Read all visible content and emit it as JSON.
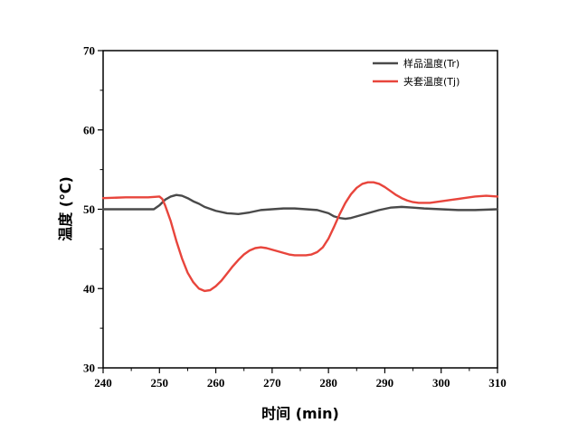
{
  "chart_data": {
    "type": "line",
    "title": "",
    "xlabel": "时间 (min)",
    "ylabel": "温度 (℃)",
    "xlim": [
      240,
      310
    ],
    "ylim": [
      30,
      70
    ],
    "xticks": [
      240,
      250,
      260,
      270,
      280,
      290,
      300,
      310
    ],
    "yticks": [
      30,
      40,
      50,
      60,
      70
    ],
    "grid": false,
    "legend_position": "top-right",
    "series": [
      {
        "name": "样品温度(Tr)",
        "color": "#4a4a4a",
        "x": [
          240,
          249,
          250,
          251,
          252,
          253,
          254,
          255,
          256,
          257,
          258,
          260,
          262,
          264,
          266,
          268,
          270,
          272,
          274,
          276,
          278,
          280,
          281,
          282,
          283,
          284,
          285,
          287,
          289,
          291,
          293,
          295,
          297,
          300,
          303,
          306,
          310
        ],
        "y": [
          50,
          50,
          50.5,
          51.2,
          51.6,
          51.8,
          51.7,
          51.4,
          51.0,
          50.7,
          50.3,
          49.8,
          49.5,
          49.4,
          49.6,
          49.9,
          50.0,
          50.1,
          50.1,
          50.0,
          49.9,
          49.5,
          49.1,
          48.9,
          48.8,
          48.9,
          49.1,
          49.5,
          49.9,
          50.2,
          50.3,
          50.2,
          50.1,
          50.0,
          49.9,
          49.9,
          50.0
        ]
      },
      {
        "name": "夹套温度(Tj)",
        "color": "#e8453c",
        "x": [
          240,
          244,
          248,
          250,
          250.5,
          251,
          252,
          253,
          254,
          255,
          256,
          257,
          258,
          259,
          260,
          261,
          262,
          263,
          264,
          265,
          266,
          267,
          268,
          269,
          270,
          271,
          272,
          273,
          274,
          275,
          276,
          277,
          278,
          279,
          280,
          281,
          282,
          283,
          284,
          285,
          286,
          287,
          288,
          289,
          290,
          291,
          292,
          293,
          294,
          295,
          296,
          297,
          298,
          300,
          302,
          304,
          306,
          308,
          310
        ],
        "y": [
          51.4,
          51.5,
          51.5,
          51.6,
          51.3,
          50.5,
          48.5,
          46.0,
          43.8,
          42.0,
          40.8,
          40.0,
          39.7,
          39.8,
          40.3,
          41.0,
          41.9,
          42.8,
          43.6,
          44.3,
          44.8,
          45.1,
          45.2,
          45.1,
          44.9,
          44.7,
          44.5,
          44.3,
          44.2,
          44.2,
          44.2,
          44.3,
          44.6,
          45.2,
          46.3,
          47.8,
          49.4,
          50.8,
          51.9,
          52.7,
          53.2,
          53.4,
          53.4,
          53.2,
          52.8,
          52.3,
          51.8,
          51.4,
          51.1,
          50.9,
          50.8,
          50.8,
          50.8,
          51.0,
          51.2,
          51.4,
          51.6,
          51.7,
          51.6
        ]
      }
    ]
  }
}
